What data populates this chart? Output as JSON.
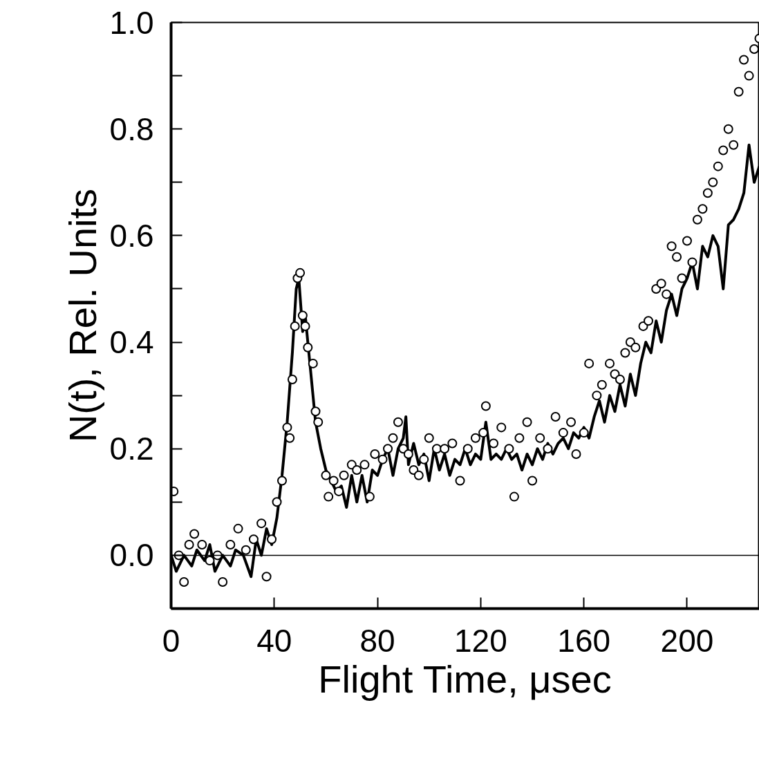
{
  "chart_data": {
    "type": "line",
    "xlabel": "Flight Time, μsec",
    "ylabel": "N(t), Rel. Units",
    "xlim": [
      0,
      228
    ],
    "ylim": [
      -0.1,
      1.0
    ],
    "xticks": [
      0,
      40,
      80,
      120,
      160,
      200
    ],
    "yticks": [
      {
        "value": 0.0,
        "label": "0.0"
      },
      {
        "value": 0.1,
        "label": null
      },
      {
        "value": 0.2,
        "label": "0.2"
      },
      {
        "value": 0.3,
        "label": null
      },
      {
        "value": 0.4,
        "label": "0.4"
      },
      {
        "value": 0.5,
        "label": null
      },
      {
        "value": 0.6,
        "label": "0.6"
      },
      {
        "value": 0.7,
        "label": null
      },
      {
        "value": 0.8,
        "label": "0.8"
      },
      {
        "value": 0.9,
        "label": null
      },
      {
        "value": 1.0,
        "label": "1.0"
      }
    ],
    "grid": false,
    "ref_lines": [
      {
        "axis": "y",
        "value": 0,
        "color": "#000000"
      }
    ],
    "series": [
      {
        "color": "#000000",
        "marker": "none",
        "line_style": "solid",
        "x": [
          0,
          2,
          5,
          8,
          10,
          13,
          15,
          17,
          20,
          23,
          25,
          28,
          31,
          33,
          35,
          37,
          39,
          41,
          43,
          45,
          47,
          48.5,
          49.5,
          51,
          52,
          54,
          56,
          58,
          60,
          62,
          64,
          66,
          68,
          70,
          72,
          74,
          76,
          78,
          80,
          82,
          84,
          86,
          88,
          90,
          91,
          92,
          94,
          96,
          98,
          100,
          102,
          104,
          106,
          108,
          110,
          112,
          114,
          116,
          118,
          120,
          122,
          124,
          126,
          128,
          130,
          132,
          134,
          136,
          138,
          140,
          142,
          144,
          146,
          148,
          150,
          152,
          154,
          156,
          158,
          160,
          162,
          164,
          166,
          168,
          170,
          172,
          174,
          176,
          178,
          180,
          182,
          184,
          186,
          188,
          190,
          192,
          194,
          196,
          198,
          200,
          202,
          204,
          206,
          208,
          210,
          212,
          214,
          216,
          218,
          220,
          222,
          224,
          226,
          228
        ],
        "values": [
          0.0,
          -0.03,
          0.0,
          -0.02,
          0.01,
          -0.01,
          0.02,
          -0.03,
          0.0,
          -0.02,
          0.01,
          0.0,
          -0.04,
          0.03,
          0.0,
          0.05,
          0.02,
          0.07,
          0.15,
          0.25,
          0.38,
          0.5,
          0.52,
          0.42,
          0.45,
          0.35,
          0.25,
          0.2,
          0.16,
          0.14,
          0.12,
          0.13,
          0.09,
          0.15,
          0.1,
          0.15,
          0.1,
          0.16,
          0.15,
          0.18,
          0.2,
          0.15,
          0.2,
          0.22,
          0.26,
          0.17,
          0.21,
          0.17,
          0.19,
          0.14,
          0.2,
          0.16,
          0.19,
          0.15,
          0.18,
          0.17,
          0.2,
          0.17,
          0.19,
          0.18,
          0.25,
          0.18,
          0.19,
          0.18,
          0.2,
          0.18,
          0.19,
          0.16,
          0.19,
          0.17,
          0.2,
          0.18,
          0.21,
          0.19,
          0.21,
          0.22,
          0.2,
          0.23,
          0.22,
          0.24,
          0.22,
          0.26,
          0.29,
          0.25,
          0.3,
          0.27,
          0.32,
          0.28,
          0.34,
          0.3,
          0.36,
          0.4,
          0.38,
          0.44,
          0.4,
          0.46,
          0.49,
          0.45,
          0.5,
          0.52,
          0.55,
          0.5,
          0.58,
          0.56,
          0.6,
          0.58,
          0.5,
          0.62,
          0.63,
          0.65,
          0.68,
          0.77,
          0.7,
          0.73
        ]
      },
      {
        "type": "scatter",
        "color": "#000000",
        "marker": "circle",
        "x": [
          1,
          3,
          5,
          7,
          9,
          12,
          15,
          18,
          20,
          23,
          26,
          29,
          32,
          35,
          37,
          39,
          41,
          43,
          45,
          46,
          47,
          48,
          49,
          50,
          51,
          52,
          53,
          55,
          56,
          57,
          60,
          61,
          63,
          65,
          67,
          70,
          72,
          75,
          77,
          79,
          82,
          84,
          86,
          88,
          90,
          92,
          94,
          96,
          98,
          100,
          103,
          106,
          109,
          112,
          115,
          118,
          121,
          122,
          125,
          128,
          131,
          133,
          135,
          138,
          140,
          143,
          146,
          149,
          152,
          155,
          157,
          160,
          162,
          165,
          167,
          170,
          172,
          174,
          176,
          178,
          180,
          183,
          185,
          188,
          190,
          192,
          194,
          196,
          198,
          200,
          202,
          204,
          206,
          208,
          210,
          212,
          214,
          216,
          218,
          220,
          222,
          224,
          226,
          228
        ],
        "values": [
          0.12,
          0.0,
          -0.05,
          0.02,
          0.04,
          0.02,
          -0.01,
          0.0,
          -0.05,
          0.02,
          0.05,
          0.01,
          0.03,
          0.06,
          -0.04,
          0.03,
          0.1,
          0.14,
          0.24,
          0.22,
          0.33,
          0.43,
          0.52,
          0.53,
          0.45,
          0.43,
          0.39,
          0.36,
          0.27,
          0.25,
          0.15,
          0.11,
          0.14,
          0.12,
          0.15,
          0.17,
          0.16,
          0.17,
          0.11,
          0.19,
          0.18,
          0.2,
          0.22,
          0.25,
          0.2,
          0.19,
          0.16,
          0.15,
          0.18,
          0.22,
          0.2,
          0.2,
          0.21,
          0.14,
          0.2,
          0.22,
          0.23,
          0.28,
          0.21,
          0.24,
          0.2,
          0.11,
          0.22,
          0.25,
          0.14,
          0.22,
          0.2,
          0.26,
          0.23,
          0.25,
          0.19,
          0.23,
          0.36,
          0.3,
          0.32,
          0.36,
          0.34,
          0.33,
          0.38,
          0.4,
          0.39,
          0.43,
          0.44,
          0.5,
          0.51,
          0.49,
          0.58,
          0.56,
          0.52,
          0.59,
          0.55,
          0.63,
          0.65,
          0.68,
          0.7,
          0.73,
          0.76,
          0.8,
          0.77,
          0.87,
          0.93,
          0.9,
          0.95,
          0.97
        ]
      }
    ]
  }
}
